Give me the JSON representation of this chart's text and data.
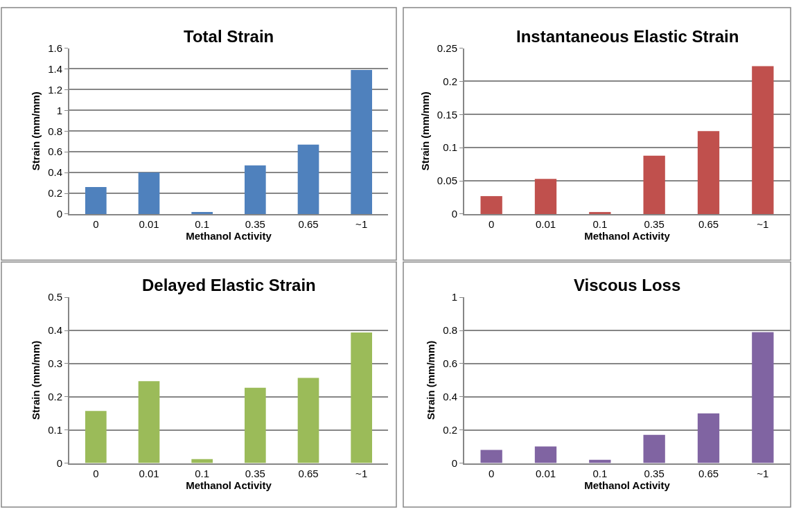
{
  "chart_data": [
    {
      "type": "bar",
      "title": "Total Strain",
      "xlabel": "Methanol Activity",
      "ylabel": "Strain (mm/mm)",
      "categories": [
        "0",
        "0.01",
        "0.1",
        "0.35",
        "0.65",
        "~1"
      ],
      "values": [
        0.26,
        0.4,
        0.02,
        0.47,
        0.67,
        1.39
      ],
      "color": "#4f81bd",
      "ylim": [
        0,
        1.6
      ],
      "yticks": [
        0,
        0.2,
        0.4,
        0.6,
        0.8,
        1,
        1.2,
        1.4,
        1.6
      ],
      "grid": "y"
    },
    {
      "type": "bar",
      "title": "Instantaneous Elastic Strain",
      "xlabel": "Methanol Activity",
      "ylabel": "Strain (mm/mm)",
      "categories": [
        "0",
        "0.01",
        "0.1",
        "0.35",
        "0.65",
        "~1"
      ],
      "values": [
        0.027,
        0.053,
        0.003,
        0.088,
        0.125,
        0.223
      ],
      "color": "#c0504d",
      "ylim": [
        0,
        0.25
      ],
      "yticks": [
        0,
        0.05,
        0.1,
        0.15,
        0.2,
        0.25
      ],
      "grid": "y"
    },
    {
      "type": "bar",
      "title": "Delayed Elastic Strain",
      "xlabel": "Methanol Activity",
      "ylabel": "Strain (mm/mm)",
      "categories": [
        "0",
        "0.01",
        "0.1",
        "0.35",
        "0.65",
        "~1"
      ],
      "values": [
        0.157,
        0.247,
        0.012,
        0.227,
        0.257,
        0.394
      ],
      "color": "#9bbb59",
      "ylim": [
        0,
        0.5
      ],
      "yticks": [
        0,
        0.1,
        0.2,
        0.3,
        0.4,
        0.5
      ],
      "grid": "y"
    },
    {
      "type": "bar",
      "title": "Viscous Loss",
      "xlabel": "Methanol Activity",
      "ylabel": "Strain (mm/mm)",
      "categories": [
        "0",
        "0.01",
        "0.1",
        "0.35",
        "0.65",
        "~1"
      ],
      "values": [
        0.08,
        0.1,
        0.02,
        0.17,
        0.3,
        0.79
      ],
      "color": "#8064a2",
      "ylim": [
        0,
        1
      ],
      "yticks": [
        0,
        0.2,
        0.4,
        0.6,
        0.8,
        1
      ],
      "grid": "y"
    }
  ]
}
